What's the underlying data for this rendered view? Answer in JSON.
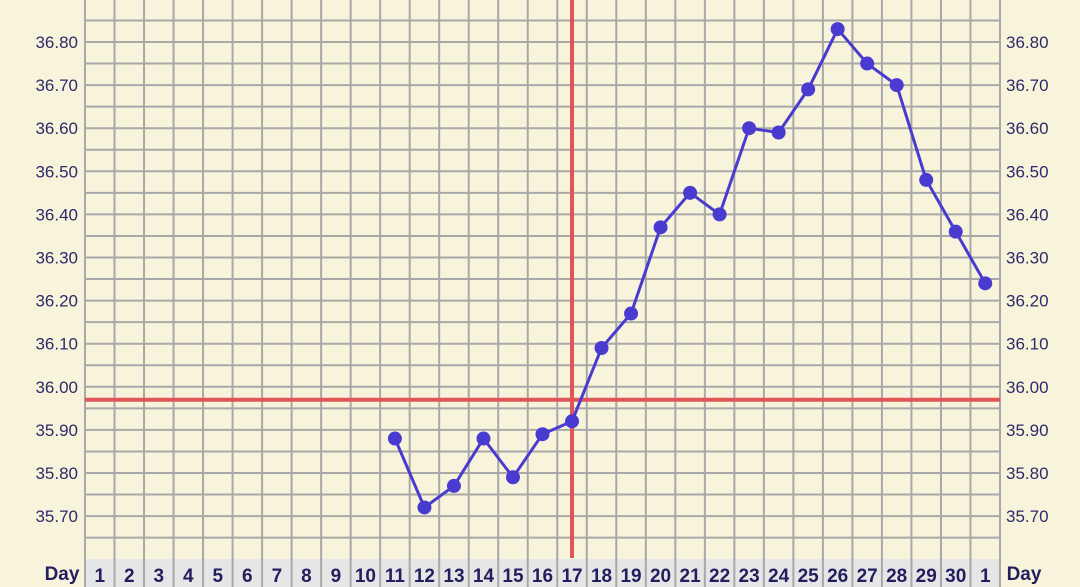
{
  "chart_data": {
    "type": "line",
    "x_label_left": "Day",
    "x_label_right": "Day",
    "categories": [
      "1",
      "2",
      "3",
      "4",
      "5",
      "6",
      "7",
      "8",
      "9",
      "10",
      "11",
      "12",
      "13",
      "14",
      "15",
      "16",
      "17",
      "18",
      "19",
      "20",
      "21",
      "22",
      "23",
      "24",
      "25",
      "26",
      "27",
      "28",
      "29",
      "30",
      "1"
    ],
    "y_ticks": [
      "36.80",
      "36.70",
      "36.60",
      "36.50",
      "36.40",
      "36.30",
      "36.20",
      "36.10",
      "36.00",
      "35.90",
      "35.80",
      "35.70"
    ],
    "ylim": [
      35.6,
      36.9
    ],
    "grid": true,
    "series": [
      {
        "values": [
          null,
          null,
          null,
          null,
          null,
          null,
          null,
          null,
          null,
          null,
          35.88,
          35.72,
          35.77,
          35.88,
          35.79,
          35.89,
          35.92,
          36.09,
          36.17,
          36.37,
          36.45,
          36.4,
          36.6,
          36.59,
          36.69,
          36.83,
          36.75,
          36.7,
          36.48,
          36.36,
          36.24
        ],
        "color": "#4a3bd0"
      }
    ],
    "coverline": 35.97,
    "ovulation_day_index": 16,
    "marker_color": "#df5558",
    "background_color": "#f8f4dc",
    "grid_color": "#a8a8a8"
  }
}
